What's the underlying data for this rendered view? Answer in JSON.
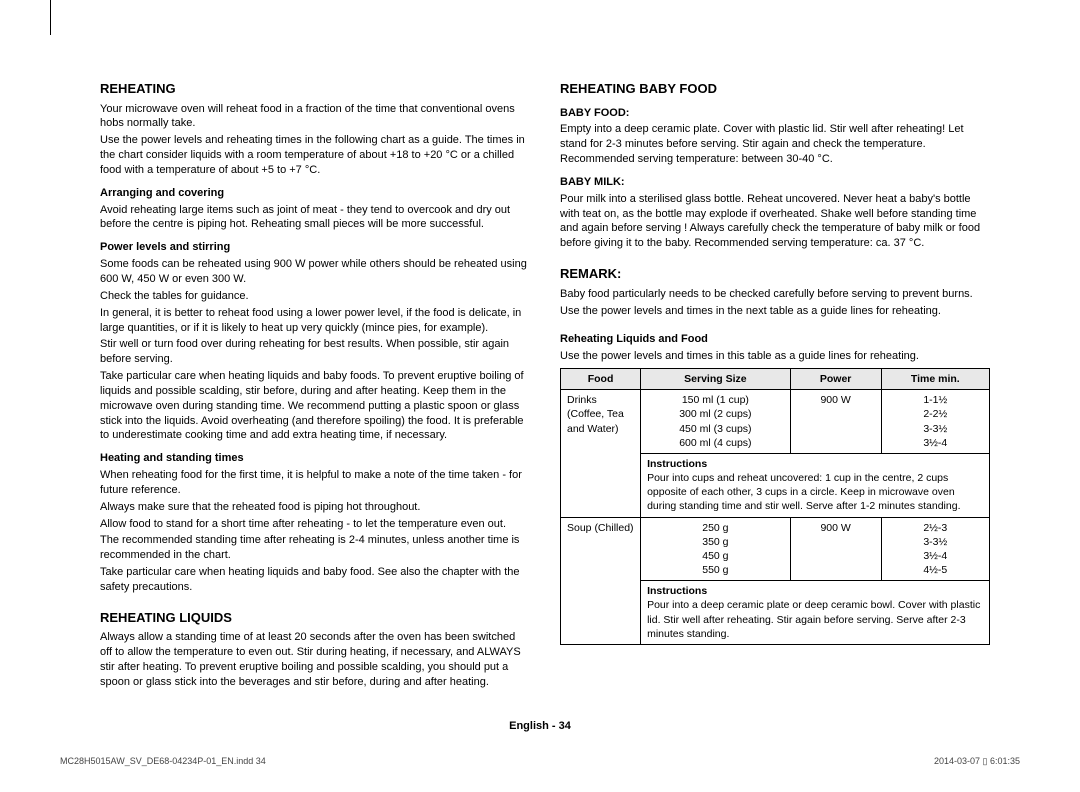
{
  "left": {
    "h_reheating": "REHEATING",
    "reheating_p1": "Your microwave oven will reheat food in a fraction of the time that conventional ovens hobs normally take.",
    "reheating_p2": "Use the power levels and reheating times in the following chart as a guide. The times in the chart consider liquids with a room temperature of about +18 to +20 °C or a chilled food with a temperature of about +5 to +7 °C.",
    "h_arranging": "Arranging and covering",
    "arranging_p": "Avoid reheating large items such as joint of meat - they tend to overcook and dry out before the centre is piping hot. Reheating small pieces will be more successful.",
    "h_power": "Power levels and stirring",
    "power_p1": "Some foods can be reheated using 900 W power while others should be reheated using 600 W, 450 W or even 300 W.",
    "power_p2": "Check the tables for guidance.",
    "power_p3": "In general, it is better to reheat food using a lower power level, if the food is delicate, in large quantities, or if it is likely to heat up very quickly (mince pies, for example).",
    "power_p4": "Stir well or turn food over during reheating for best results. When possible, stir again before serving.",
    "power_p5": "Take particular care when heating liquids and baby foods. To prevent eruptive boiling of liquids and possible scalding, stir before, during and after heating. Keep them in the microwave oven during standing time. We recommend putting a plastic spoon or glass stick into the liquids. Avoid overheating (and therefore spoiling) the food. It is preferable to underestimate cooking time and add extra heating time, if necessary.",
    "h_heating": "Heating and standing times",
    "heating_p1": "When reheating food for the first time, it is helpful to make a note of the time taken - for future reference.",
    "heating_p2": "Always make sure that the reheated food is piping hot throughout.",
    "heating_p3": "Allow food to stand for a short time after reheating - to let the temperature even out.",
    "heating_p4": "The recommended standing time after reheating is 2-4 minutes, unless another time is recommended in the chart.",
    "heating_p5": "Take particular care when heating liquids and baby food. See also the chapter with the safety precautions.",
    "h_liquids": "REHEATING LIQUIDS",
    "liquids_p": "Always allow a standing time of at least 20 seconds after the oven has been switched off to allow the temperature to even out. Stir during heating, if necessary, and ALWAYS stir after heating. To prevent eruptive boiling and possible scalding, you should put a spoon or glass stick into the beverages and stir before, during and after heating."
  },
  "right": {
    "h_baby": "REHEATING BABY FOOD",
    "h_babyfood": "BABY FOOD:",
    "babyfood_p": "Empty into a deep ceramic plate. Cover with plastic lid. Stir well after reheating! Let stand for 2-3 minutes before serving. Stir again and check the temperature. Recommended serving temperature: between 30-40 °C.",
    "h_babymilk": "BABY MILK:",
    "babymilk_p": "Pour milk into a sterilised glass bottle. Reheat uncovered. Never heat a baby's bottle with teat on, as the bottle may explode if overheated. Shake well before standing time and again before serving ! Always carefully check the temperature of baby milk or food before giving it to the baby. Recommended serving temperature: ca. 37 °C.",
    "h_remark": "REMARK:",
    "remark_p1": "Baby food particularly needs to be checked carefully before serving to prevent burns.",
    "remark_p2": "Use the power levels and times in the next table as a guide lines for reheating.",
    "h_tablehead": "Reheating Liquids and Food",
    "table_intro": "Use the power levels and times in this table as a guide lines for reheating.",
    "table": {
      "headers": [
        "Food",
        "Serving Size",
        "Power",
        "Time min."
      ],
      "drinks_label": "Drinks (Coffee, Tea and Water)",
      "drinks_sizes": "150 ml (1 cup)\n300 ml (2 cups)\n450 ml (3 cups)\n600 ml (4 cups)",
      "drinks_power": "900 W",
      "drinks_times": "1-1½\n2-2½\n3-3½\n3½-4",
      "instr_label": "Instructions",
      "drinks_instr": "Pour into cups and reheat uncovered: 1 cup in the centre, 2 cups opposite of each other, 3 cups in a circle. Keep in microwave oven during standing time and stir well. Serve after 1-2 minutes standing.",
      "soup_label": "Soup (Chilled)",
      "soup_sizes": "250 g\n350 g\n450 g\n550 g",
      "soup_power": "900 W",
      "soup_times": "2½-3\n3-3½\n3½-4\n4½-5",
      "soup_instr": "Pour into a deep ceramic plate or deep ceramic bowl. Cover with plastic lid. Stir well after reheating. Stir again before serving. Serve after 2-3 minutes standing."
    }
  },
  "footer": {
    "center": "English - 34",
    "left": "MC28H5015AW_SV_DE68-04234P-01_EN.indd   34",
    "right": "2014-03-07   ▯ 6:01:35"
  }
}
